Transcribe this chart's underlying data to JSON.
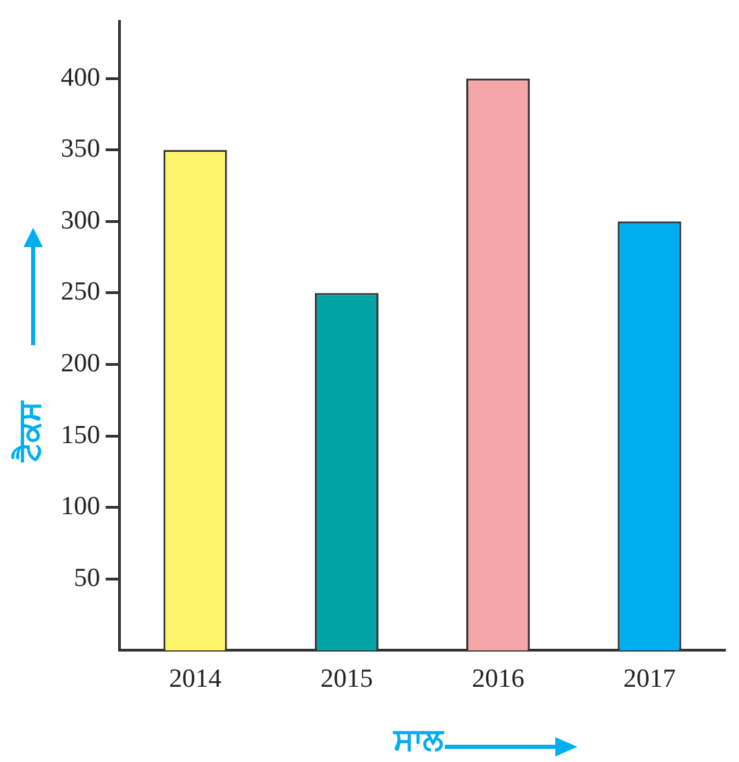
{
  "chart_data": {
    "type": "bar",
    "xlabel": "ਸਾਲ",
    "ylabel": "ਟੈਕਸ",
    "categories": [
      "2014",
      "2015",
      "2016",
      "2017"
    ],
    "values": [
      350,
      250,
      400,
      300
    ],
    "colors": [
      "#fef46b",
      "#00a3a4",
      "#f5a6a8",
      "#00aeef"
    ],
    "ylim": [
      0,
      440
    ],
    "yticks": [
      50,
      100,
      150,
      200,
      250,
      300,
      350,
      400
    ],
    "grid": false,
    "legend": false
  }
}
